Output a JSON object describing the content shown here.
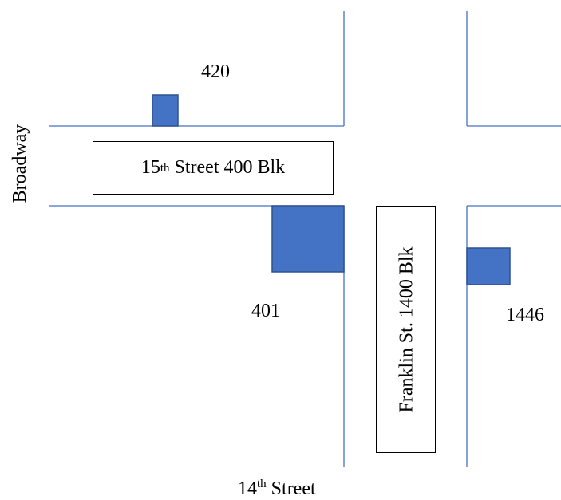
{
  "colors": {
    "road_line": "#4472c4",
    "building_fill": "#4472c4",
    "building_stroke": "#2f528f",
    "text": "#000000"
  },
  "buildings": {
    "b420": {
      "number": "420"
    },
    "b401": {
      "number": "401"
    },
    "b1446": {
      "number": "1446"
    }
  },
  "streets": {
    "fifteenth": {
      "prefix": "15",
      "suffix": "th",
      "rest": " Street 400 Blk"
    },
    "franklin": {
      "name": "Franklin St. 1400 Blk"
    },
    "fourteenth": {
      "prefix": "14",
      "suffix": "th",
      "rest": " Street"
    },
    "broadway": {
      "name": "Broadway"
    }
  }
}
